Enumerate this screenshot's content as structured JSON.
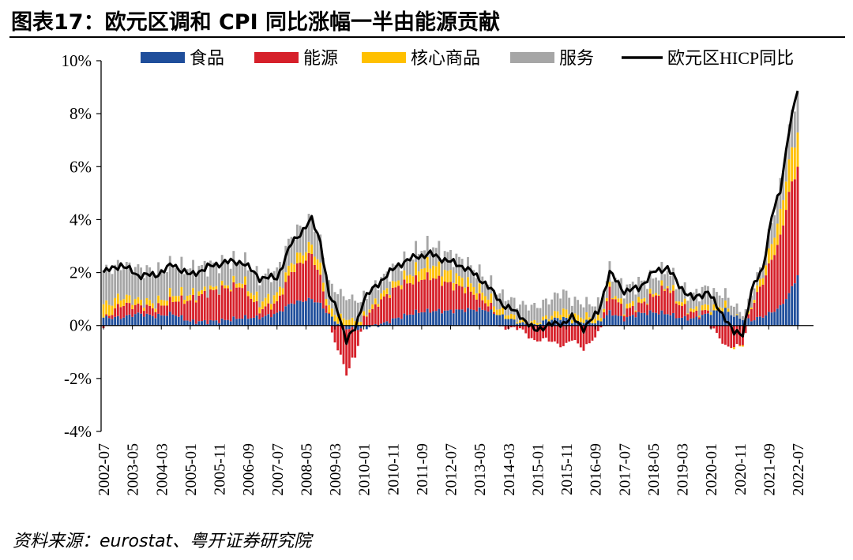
{
  "figure": {
    "title": "图表17：欧元区调和 CPI 同比涨幅一半由能源贡献",
    "source": "资料来源：eurostat、粤开证券研究院"
  },
  "chart_data": {
    "type": "bar",
    "stacked": true,
    "title": "",
    "xlabel": "",
    "ylabel": "",
    "ylim": [
      -4,
      10
    ],
    "y_ticks": [
      -4,
      -2,
      0,
      2,
      4,
      6,
      8,
      10
    ],
    "y_tick_labels": [
      "-4%",
      "-2%",
      "0%",
      "2%",
      "4%",
      "6%",
      "8%",
      "10%"
    ],
    "x_start": "2002-07",
    "x_end": "2022-07",
    "x_tick_labels": [
      "2002-07",
      "2003-05",
      "2004-03",
      "2005-01",
      "2005-11",
      "2006-09",
      "2007-07",
      "2008-05",
      "2009-03",
      "2010-01",
      "2010-11",
      "2011-09",
      "2012-07",
      "2013-05",
      "2014-03",
      "2015-01",
      "2015-11",
      "2016-09",
      "2017-07",
      "2018-05",
      "2019-03",
      "2020-01",
      "2020-11",
      "2021-09",
      "2022-07"
    ],
    "grid": false,
    "legend_position": "top",
    "legend": [
      "食品",
      "能源",
      "核心商品",
      "服务",
      "欧元区HICP同比"
    ],
    "colors": {
      "food": "#1f4e9b",
      "energy": "#d6202a",
      "core_goods": "#ffc000",
      "services": "#a6a6a6",
      "hicp": "#000000"
    },
    "anchor_dates": [
      "2002-07",
      "2003-01",
      "2003-07",
      "2004-01",
      "2004-07",
      "2005-01",
      "2005-07",
      "2006-01",
      "2006-07",
      "2007-01",
      "2007-07",
      "2007-12",
      "2008-07",
      "2008-10",
      "2009-01",
      "2009-04",
      "2009-07",
      "2009-10",
      "2010-01",
      "2010-07",
      "2011-01",
      "2011-07",
      "2011-12",
      "2012-07",
      "2012-12",
      "2013-07",
      "2014-01",
      "2014-07",
      "2014-12",
      "2015-04",
      "2015-10",
      "2016-01",
      "2016-05",
      "2016-10",
      "2017-02",
      "2017-07",
      "2017-12",
      "2018-05",
      "2018-10",
      "2019-02",
      "2019-07",
      "2019-12",
      "2020-03",
      "2020-06",
      "2020-09",
      "2020-12",
      "2021-03",
      "2021-07",
      "2021-10",
      "2022-01",
      "2022-04",
      "2022-07"
    ],
    "series": [
      {
        "name": "食品",
        "key": "food",
        "values": [
          0.3,
          0.3,
          0.45,
          0.35,
          0.45,
          0.15,
          0.15,
          0.2,
          0.3,
          0.3,
          0.45,
          0.85,
          1.0,
          0.8,
          0.4,
          0.1,
          -0.1,
          -0.15,
          -0.1,
          0.05,
          0.3,
          0.5,
          0.55,
          0.55,
          0.6,
          0.6,
          0.35,
          0.1,
          0.0,
          0.2,
          0.3,
          0.15,
          0.15,
          0.1,
          0.5,
          0.25,
          0.45,
          0.5,
          0.45,
          0.3,
          0.25,
          0.45,
          0.55,
          0.6,
          0.35,
          0.25,
          0.2,
          0.35,
          0.5,
          0.7,
          1.2,
          1.9
        ]
      },
      {
        "name": "能源",
        "key": "energy",
        "values": [
          -0.1,
          0.5,
          0.3,
          0.3,
          0.5,
          0.8,
          1.1,
          1.2,
          1.2,
          0.3,
          0.4,
          1.2,
          1.7,
          1.0,
          0.0,
          -0.9,
          -1.7,
          -1.0,
          0.3,
          0.9,
          1.2,
          1.2,
          1.3,
          1.0,
          0.8,
          0.3,
          -0.1,
          -0.1,
          -0.6,
          -0.5,
          -0.8,
          -0.5,
          -0.9,
          -0.3,
          0.8,
          0.3,
          0.3,
          0.6,
          1.0,
          0.5,
          0.2,
          0.1,
          -0.3,
          -0.8,
          -0.8,
          -0.7,
          0.5,
          1.3,
          2.0,
          2.6,
          3.8,
          4.1
        ]
      },
      {
        "name": "核心商品",
        "key": "core_goods",
        "values": [
          0.5,
          0.3,
          0.2,
          0.2,
          0.25,
          0.2,
          0.1,
          0.1,
          0.2,
          0.3,
          0.3,
          0.35,
          0.35,
          0.4,
          0.25,
          0.3,
          0.25,
          0.2,
          0.1,
          0.2,
          0.2,
          0.4,
          0.5,
          0.4,
          0.3,
          0.3,
          0.2,
          0.1,
          0.1,
          0.1,
          0.3,
          0.2,
          0.2,
          0.2,
          0.1,
          0.15,
          0.15,
          0.1,
          0.1,
          0.15,
          0.1,
          0.2,
          0.15,
          0.2,
          -0.05,
          0.0,
          0.1,
          0.3,
          0.6,
          0.9,
          1.2,
          1.3
        ]
      },
      {
        "name": "服务",
        "key": "services",
        "values": [
          1.3,
          1.2,
          1.2,
          1.2,
          1.1,
          1.0,
          0.9,
          0.9,
          0.8,
          0.9,
          0.9,
          1.0,
          1.0,
          1.0,
          0.9,
          0.9,
          0.8,
          0.8,
          0.7,
          0.6,
          0.6,
          0.7,
          0.7,
          0.7,
          0.7,
          0.6,
          0.6,
          0.6,
          0.6,
          0.6,
          0.7,
          0.6,
          0.5,
          0.5,
          0.7,
          0.7,
          0.7,
          0.6,
          0.6,
          0.5,
          0.6,
          0.7,
          0.5,
          0.4,
          0.4,
          0.2,
          0.5,
          0.4,
          0.8,
          1.1,
          1.3,
          1.5
        ]
      },
      {
        "name": "欧元区HICP同比",
        "key": "hicp",
        "type": "line",
        "values": [
          2.0,
          2.3,
          1.9,
          1.9,
          2.3,
          1.9,
          2.2,
          2.4,
          2.4,
          1.8,
          1.8,
          3.1,
          4.0,
          3.2,
          1.1,
          0.6,
          -0.6,
          -0.1,
          1.0,
          1.7,
          2.3,
          2.6,
          2.7,
          2.4,
          2.2,
          1.6,
          0.8,
          0.4,
          -0.2,
          0.0,
          0.1,
          0.3,
          -0.1,
          0.5,
          2.0,
          1.3,
          1.4,
          2.0,
          2.2,
          1.5,
          1.0,
          1.3,
          0.7,
          0.3,
          -0.3,
          -0.3,
          1.3,
          2.2,
          4.1,
          5.1,
          7.4,
          8.9
        ]
      }
    ]
  }
}
